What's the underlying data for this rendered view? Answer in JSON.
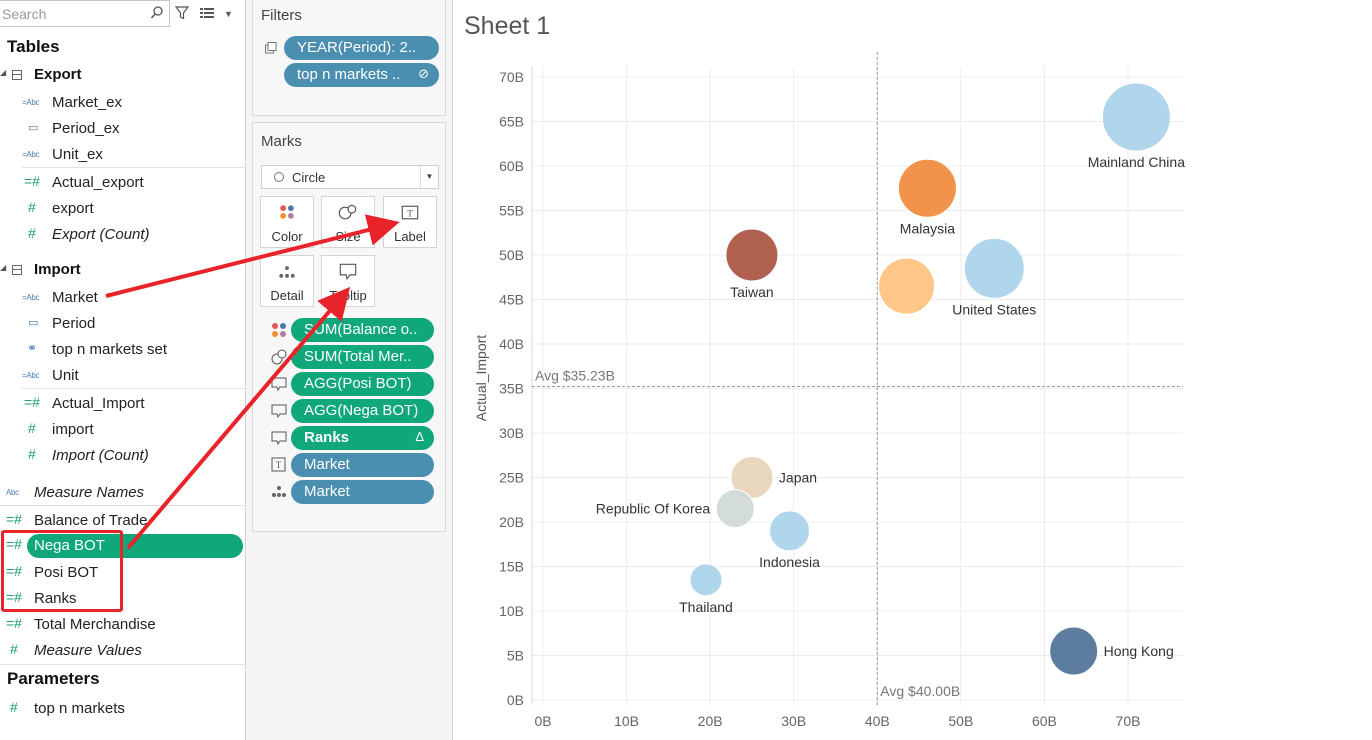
{
  "search": {
    "placeholder": "Search"
  },
  "data_pane": {
    "tables_title": "Tables",
    "export": {
      "name": "Export",
      "dimensions": [
        {
          "name": "Market_ex",
          "type": "abc"
        },
        {
          "name": "Period_ex",
          "type": "date"
        },
        {
          "name": "Unit_ex",
          "type": "abc"
        }
      ],
      "measures": [
        {
          "name": "Actual_export",
          "type": "measure"
        },
        {
          "name": "export",
          "type": "measure"
        },
        {
          "name": "Export (Count)",
          "type": "measure",
          "italic": true
        }
      ]
    },
    "import": {
      "name": "Import",
      "dimensions": [
        {
          "name": "Market",
          "type": "abc"
        },
        {
          "name": "Period",
          "type": "date"
        },
        {
          "name": "top n markets set",
          "type": "set"
        },
        {
          "name": "Unit",
          "type": "abc"
        }
      ],
      "measures": [
        {
          "name": "Actual_Import",
          "type": "measure"
        },
        {
          "name": "import",
          "type": "measure"
        },
        {
          "name": "Import (Count)",
          "type": "measure",
          "italic": true
        }
      ]
    },
    "other_fields": [
      {
        "name": "Measure Names",
        "type": "abc",
        "italic": true
      },
      {
        "name": "Balance of Trade",
        "type": "calc"
      },
      {
        "name": "Nega BOT",
        "type": "calc",
        "selected": true
      },
      {
        "name": "Posi BOT",
        "type": "calc"
      },
      {
        "name": "Ranks",
        "type": "calc"
      },
      {
        "name": "Total Merchandise",
        "type": "calc"
      },
      {
        "name": "Measure Values",
        "type": "measure",
        "italic": true
      }
    ],
    "parameters_title": "Parameters",
    "parameters": [
      {
        "name": "top n markets",
        "type": "measure"
      }
    ]
  },
  "filters": {
    "title": "Filters",
    "items": [
      "YEAR(Period): 2..",
      "top n markets .."
    ]
  },
  "marks": {
    "title": "Marks",
    "mark_type": "Circle",
    "buttons": [
      "Color",
      "Size",
      "Label",
      "Detail",
      "Tooltip"
    ],
    "shelf": [
      {
        "label": "SUM(Balance o..",
        "icon": "color",
        "color": "green"
      },
      {
        "label": "SUM(Total Mer..",
        "icon": "size",
        "color": "green"
      },
      {
        "label": "AGG(Posi BOT)",
        "icon": "tooltip",
        "color": "green"
      },
      {
        "label": "AGG(Nega BOT)",
        "icon": "tooltip",
        "color": "green"
      },
      {
        "label": "Ranks",
        "icon": "tooltip",
        "color": "green",
        "tail": "Δ"
      },
      {
        "label": "Market",
        "icon": "label",
        "color": "blue"
      },
      {
        "label": "Market",
        "icon": "detail",
        "color": "blue"
      }
    ]
  },
  "sheet": {
    "title": "Sheet 1"
  },
  "chart_data": {
    "type": "scatter",
    "xlabel": "",
    "ylabel": "Actual_Import",
    "xlim": [
      0,
      75
    ],
    "ylim": [
      0,
      72
    ],
    "x_ticks": [
      "0B",
      "10B",
      "20B",
      "30B",
      "40B",
      "50B",
      "60B",
      "70B"
    ],
    "y_ticks": [
      "0B",
      "5B",
      "10B",
      "15B",
      "20B",
      "25B",
      "30B",
      "35B",
      "40B",
      "45B",
      "50B",
      "55B",
      "60B",
      "65B",
      "70B"
    ],
    "reference_lines": [
      {
        "axis": "x",
        "value": 40.0,
        "label": "Avg $40.00B"
      },
      {
        "axis": "y",
        "value": 35.23,
        "label": "Avg $35.23B"
      }
    ],
    "points": [
      {
        "label": "Mainland China",
        "x": 71,
        "y": 65.5,
        "size": 3.4,
        "color": "#a9d3ea"
      },
      {
        "label": "Malaysia",
        "x": 46,
        "y": 57.5,
        "size": 2.9,
        "color": "#f08a3c"
      },
      {
        "label": "United States",
        "x": 54,
        "y": 48.5,
        "size": 3.0,
        "color": "#a9d3ea"
      },
      {
        "label": "Taiwan",
        "x": 25,
        "y": 50,
        "size": 2.6,
        "color": "#a9533f"
      },
      {
        "label": "",
        "x": 43.5,
        "y": 46.5,
        "size": 2.8,
        "color": "#ffc27d"
      },
      {
        "label": "Japan",
        "x": 25,
        "y": 25,
        "size": 2.1,
        "color": "#e6d3b8"
      },
      {
        "label": "Republic Of Korea",
        "x": 23,
        "y": 21.5,
        "size": 1.9,
        "color": "#cfd8d8"
      },
      {
        "label": "Indonesia",
        "x": 29.5,
        "y": 19,
        "size": 2.0,
        "color": "#a9d3ea"
      },
      {
        "label": "Thailand",
        "x": 19.5,
        "y": 13.5,
        "size": 1.6,
        "color": "#a9d3ea"
      },
      {
        "label": "Hong Kong",
        "x": 63.5,
        "y": 5.5,
        "size": 2.4,
        "color": "#4e7298"
      }
    ]
  },
  "colors": {
    "green_pill": "#10a77a",
    "blue_pill": "#4a8eb0",
    "annotation_red": "#e8242a"
  }
}
